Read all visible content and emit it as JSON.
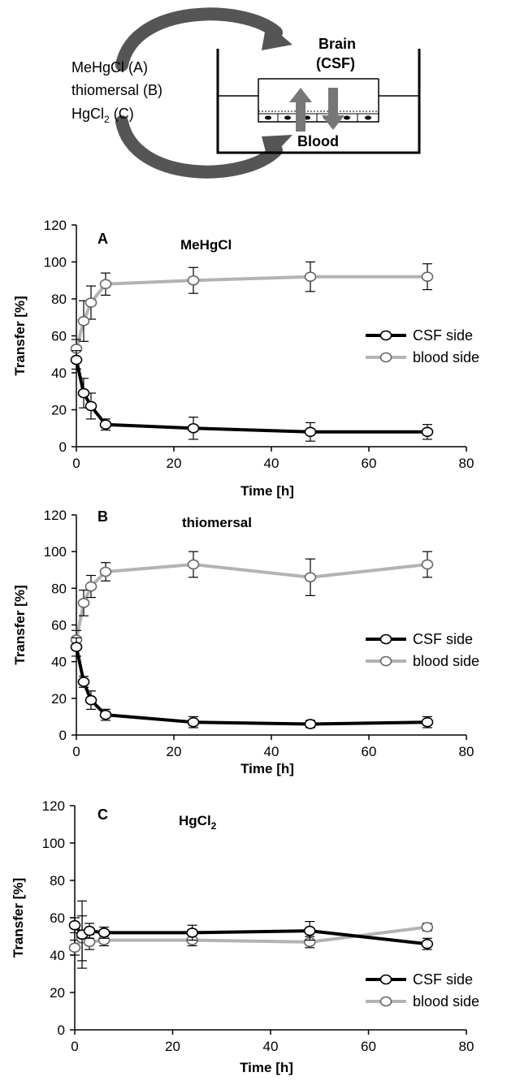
{
  "schematic": {
    "brain_label": "Brain",
    "csf_label": "(CSF)",
    "blood_label": "Blood",
    "compound_a": "MeHgCl (A)",
    "compound_b": "thiomersal (B)",
    "compound_c_base": "HgCl",
    "compound_c_sub": "2",
    "compound_c_suffix": " (C)"
  },
  "colors": {
    "csf": "#000000",
    "blood": "#b3b3b3",
    "arrow": "#555555"
  },
  "chart_data": [
    {
      "type": "line",
      "panel": "A",
      "compound": "MeHgCl",
      "compound_sub": "",
      "xlabel": "Time [h]",
      "ylabel": "Transfer [%]",
      "xlim": [
        0,
        80
      ],
      "ylim": [
        0,
        120
      ],
      "xticks": [
        0,
        20,
        40,
        60,
        80
      ],
      "yticks": [
        0,
        20,
        40,
        60,
        80,
        100,
        120
      ],
      "legend_position": "right-middle",
      "x": [
        0,
        1.5,
        3,
        6,
        24,
        48,
        72
      ],
      "series": [
        {
          "name": "CSF side",
          "color": "#000000",
          "values": [
            47,
            29,
            22,
            12,
            10,
            8,
            8
          ],
          "errors": [
            5,
            8,
            7,
            3,
            6,
            5,
            4
          ]
        },
        {
          "name": "blood side",
          "color": "#b3b3b3",
          "values": [
            53,
            68,
            78,
            88,
            90,
            92,
            92
          ],
          "errors": [
            5,
            11,
            9,
            6,
            7,
            8,
            7
          ]
        }
      ]
    },
    {
      "type": "line",
      "panel": "B",
      "compound": "thiomersal",
      "compound_sub": "",
      "xlabel": "Time [h]",
      "ylabel": "Transfer [%]",
      "xlim": [
        0,
        80
      ],
      "ylim": [
        0,
        120
      ],
      "xticks": [
        0,
        20,
        40,
        60,
        80
      ],
      "yticks": [
        0,
        20,
        40,
        60,
        80,
        100,
        120
      ],
      "legend_position": "right-middle",
      "x": [
        0,
        1.5,
        3,
        6,
        24,
        48,
        72
      ],
      "series": [
        {
          "name": "CSF side",
          "color": "#000000",
          "values": [
            48,
            29,
            19,
            11,
            7,
            6,
            7
          ],
          "errors": [
            5,
            3,
            5,
            3,
            3,
            2,
            3
          ]
        },
        {
          "name": "blood side",
          "color": "#b3b3b3",
          "values": [
            52,
            72,
            81,
            89,
            93,
            86,
            93
          ],
          "errors": [
            5,
            7,
            6,
            5,
            7,
            10,
            7
          ]
        }
      ]
    },
    {
      "type": "line",
      "panel": "C",
      "compound": "HgCl",
      "compound_sub": "2",
      "xlabel": "Time [h]",
      "ylabel": "Transfer [%]",
      "xlim": [
        0,
        80
      ],
      "ylim": [
        0,
        120
      ],
      "xticks": [
        0,
        20,
        40,
        60,
        80
      ],
      "yticks": [
        0,
        20,
        40,
        60,
        80,
        100,
        120
      ],
      "legend_position": "bottom-right",
      "x": [
        0,
        1.5,
        3,
        6,
        24,
        48,
        72
      ],
      "series": [
        {
          "name": "CSF side",
          "color": "#000000",
          "values": [
            56,
            51,
            53,
            52,
            52,
            53,
            46
          ],
          "errors": [
            4,
            18,
            4,
            3,
            4,
            5,
            3
          ]
        },
        {
          "name": "blood side",
          "color": "#b3b3b3",
          "values": [
            44,
            49,
            47,
            48,
            48,
            47,
            55
          ],
          "errors": [
            4,
            12,
            4,
            3,
            3,
            3,
            2
          ]
        }
      ]
    }
  ]
}
